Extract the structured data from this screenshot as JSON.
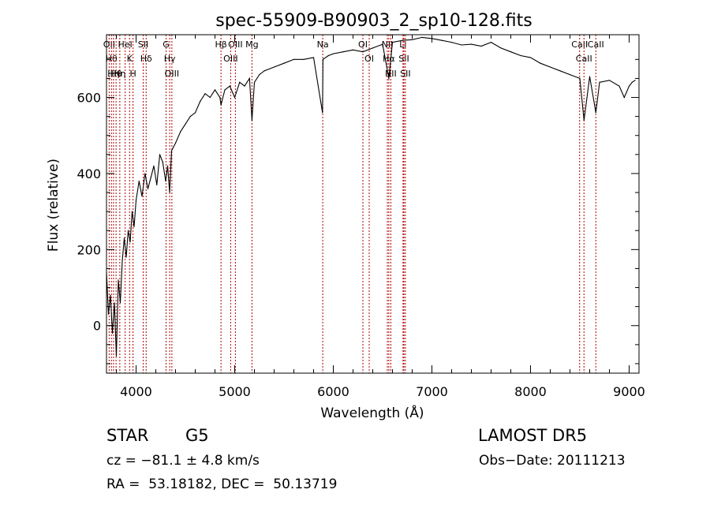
{
  "chart_data": {
    "type": "line",
    "title": "spec-55909-B90903_2_sp10-128.fits",
    "xlabel": "Wavelength (Å)",
    "ylabel": "Flux (relative)",
    "xlim": [
      3700,
      9100
    ],
    "ylim": [
      -125,
      765
    ],
    "xticks": [
      4000,
      5000,
      6000,
      7000,
      8000,
      9000
    ],
    "yticks": [
      0,
      200,
      400,
      600
    ],
    "grid": false,
    "series": [
      {
        "x": [
          3700,
          3720,
          3740,
          3760,
          3780,
          3800,
          3820,
          3840,
          3860,
          3880,
          3900,
          3920,
          3940,
          3960,
          3980,
          4000,
          4030,
          4060,
          4090,
          4120,
          4150,
          4180,
          4210,
          4240,
          4270,
          4300,
          4320,
          4340,
          4360,
          4400,
          4450,
          4500,
          4550,
          4600,
          4650,
          4700,
          4750,
          4800,
          4850,
          4861,
          4900,
          4950,
          5000,
          5050,
          5100,
          5150,
          5175,
          5200,
          5250,
          5300,
          5400,
          5500,
          5600,
          5700,
          5800,
          5890,
          5895,
          5950,
          6000,
          6100,
          6200,
          6300,
          6400,
          6500,
          6563,
          6600,
          6700,
          6800,
          6900,
          7000,
          7100,
          7200,
          7300,
          7400,
          7500,
          7600,
          7700,
          7800,
          7900,
          8000,
          8100,
          8200,
          8300,
          8400,
          8500,
          8542,
          8600,
          8662,
          8700,
          8800,
          8900,
          8950,
          9000,
          9030,
          9060
        ],
        "y": [
          140,
          30,
          80,
          -20,
          60,
          -80,
          120,
          60,
          170,
          230,
          180,
          250,
          220,
          300,
          260,
          330,
          380,
          340,
          400,
          360,
          390,
          420,
          370,
          450,
          430,
          380,
          420,
          350,
          460,
          480,
          510,
          530,
          550,
          560,
          590,
          610,
          600,
          620,
          600,
          580,
          620,
          630,
          600,
          640,
          630,
          650,
          540,
          640,
          660,
          670,
          680,
          690,
          700,
          700,
          705,
          560,
          700,
          710,
          715,
          720,
          725,
          720,
          730,
          740,
          650,
          745,
          750,
          752,
          758,
          755,
          750,
          745,
          738,
          740,
          735,
          745,
          730,
          720,
          710,
          705,
          690,
          680,
          670,
          660,
          650,
          540,
          655,
          560,
          640,
          645,
          630,
          600,
          630,
          640,
          645
        ]
      }
    ],
    "lines": [
      {
        "x": 3727,
        "label": "OII"
      },
      {
        "x": 3750,
        "label": "Hθ"
      },
      {
        "x": 3771,
        "label": "Hη"
      },
      {
        "x": 3797,
        "label": "Hθ"
      },
      {
        "x": 3835,
        "label": "Hη"
      },
      {
        "x": 3889,
        "label": "HeI"
      },
      {
        "x": 3934,
        "label": "K"
      },
      {
        "x": 3969,
        "label": "H"
      },
      {
        "x": 4072,
        "label": "SII"
      },
      {
        "x": 4102,
        "label": "Hδ"
      },
      {
        "x": 4304,
        "label": "G"
      },
      {
        "x": 4341,
        "label": "Hγ"
      },
      {
        "x": 4363,
        "label": "OIII"
      },
      {
        "x": 4861,
        "label": "Hβ"
      },
      {
        "x": 4959,
        "label": "OIII"
      },
      {
        "x": 5007,
        "label": "OIII"
      },
      {
        "x": 5175,
        "label": "Mg"
      },
      {
        "x": 5893,
        "label": "Na"
      },
      {
        "x": 6300,
        "label": "OI"
      },
      {
        "x": 6364,
        "label": "OI"
      },
      {
        "x": 6548,
        "label": "NII"
      },
      {
        "x": 6563,
        "label": "Hα"
      },
      {
        "x": 6583,
        "label": "NII"
      },
      {
        "x": 6707,
        "label": "Li"
      },
      {
        "x": 6716,
        "label": "SII"
      },
      {
        "x": 6731,
        "label": "SII"
      },
      {
        "x": 8498,
        "label": "CaII"
      },
      {
        "x": 8542,
        "label": "CaII"
      },
      {
        "x": 8662,
        "label": "CaII"
      }
    ]
  },
  "info": {
    "class": "STAR",
    "subclass": "G5",
    "survey": "LAMOST DR5",
    "cz": "cz = −81.1 ± 4.8 km/s",
    "obs_date": "Obs−Date: 20111213",
    "coords": "RA =  53.18182, DEC =  50.13719"
  }
}
